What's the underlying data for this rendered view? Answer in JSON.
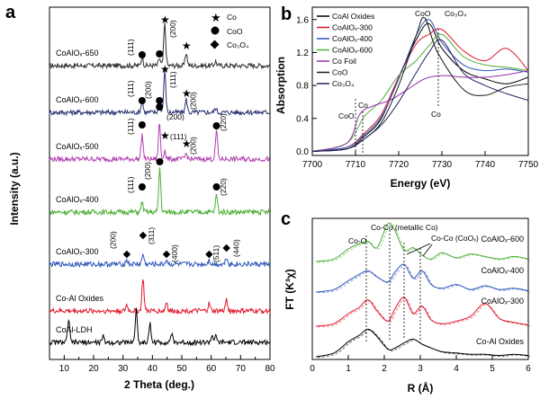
{
  "panels": {
    "a": {
      "letter": "a",
      "xlabel": "2 Theta (deg.)",
      "ylabel": "Intensity (a.u.)",
      "xlim": [
        5,
        80
      ],
      "xticks": [
        10,
        20,
        30,
        40,
        50,
        60,
        70,
        80
      ],
      "legend": [
        {
          "marker": "star",
          "label": "Co"
        },
        {
          "marker": "circle",
          "label": "CoO"
        },
        {
          "marker": "diamond",
          "label": "Co₃O₄"
        }
      ],
      "samples": [
        {
          "label": "CoAlOₓ-650",
          "color": "#2c2c2c"
        },
        {
          "label": "CoAlOₓ-600",
          "color": "#2a3172"
        },
        {
          "label": "CoAlOₓ-500",
          "color": "#b040b0"
        },
        {
          "label": "CoAlOₓ-400",
          "color": "#4caf34"
        },
        {
          "label": "CoAlOₓ-300",
          "color": "#2b55b8"
        },
        {
          "label": "Co-Al Oxides",
          "color": "#e0162b"
        },
        {
          "label": "CoAl-LDH",
          "color": "#000000"
        }
      ],
      "annotations": [
        "(111)",
        "(200)",
        "(111)",
        "(200)",
        "(111)",
        "(200)",
        "(111)",
        "(200)",
        "(220)",
        "(111)",
        "(200)",
        "(220)",
        "(200)",
        "(311)",
        "(400)",
        "(511)",
        "(440)"
      ]
    },
    "b": {
      "letter": "b",
      "xlabel": "Energy (eV)",
      "ylabel": "Absorption",
      "xlim": [
        7700,
        7750
      ],
      "ylim": [
        -0.05,
        1.75
      ],
      "xticks": [
        7700,
        7710,
        7720,
        7730,
        7740,
        7750
      ],
      "yticks": [
        0.0,
        0.4,
        0.8,
        1.2,
        1.6
      ],
      "legend": [
        {
          "label": "CoAl Oxides",
          "color": "#000000"
        },
        {
          "label": "CoAlOₓ-300",
          "color": "#e0162b"
        },
        {
          "label": "CoAlOₓ-400",
          "color": "#2b55b8"
        },
        {
          "label": "CoAlOₓ-600",
          "color": "#4caf34"
        },
        {
          "label": "Co Foil",
          "color": "#9a2fb0"
        },
        {
          "label": "CoO",
          "color": "#1a1a1a"
        },
        {
          "label": "Co₃O₄",
          "color": "#23235e"
        }
      ],
      "annotations": {
        "coo_top": "CoO",
        "co3o4_top": "Co₃O₄",
        "co_mid": "Co",
        "coo_left": "CoO",
        "co_left": "Co"
      }
    },
    "c": {
      "letter": "c",
      "xlabel": "R (Å)",
      "ylabel": "FT (K³χ)",
      "xlim": [
        0,
        6
      ],
      "xticks": [
        0,
        1,
        2,
        3,
        4,
        5,
        6
      ],
      "samples": [
        {
          "label": "CoAlOₓ-600",
          "color": "#4caf34"
        },
        {
          "label": "CoAlOₓ-400",
          "color": "#2b55b8"
        },
        {
          "label": "CoAlOₓ-300",
          "color": "#e0162b"
        },
        {
          "label": "Co-Al Oxides",
          "color": "#000000"
        }
      ],
      "annotations": {
        "coo": "Co-O",
        "coco_metal": "Co-Co (metallic Co)",
        "coco_cox": "Co-Co (CoOₓ)"
      }
    }
  },
  "chart_data": [
    {
      "type": "line",
      "title": "",
      "xlabel": "2 Theta (deg.)",
      "ylabel": "Intensity (a.u.)",
      "xlim": [
        5,
        80
      ],
      "series": [
        {
          "name": "CoAlOₓ-650",
          "peaks": [
            [
              36.5,
              0.6
            ],
            [
              42.4,
              0.5
            ],
            [
              44.2,
              2.9
            ],
            [
              51.5,
              0.9
            ],
            [
              61.5,
              0.3
            ]
          ]
        },
        {
          "name": "CoAlOₓ-600",
          "peaks": [
            [
              36.5,
              0.8
            ],
            [
              42.4,
              0.8
            ],
            [
              44.2,
              2.9
            ],
            [
              51.5,
              0.9
            ],
            [
              61.5,
              0.3
            ]
          ]
        },
        {
          "name": "CoAlOₓ-500",
          "peaks": [
            [
              36.5,
              1.7
            ],
            [
              42.4,
              2.5
            ],
            [
              44.2,
              0.6
            ],
            [
              51.5,
              0.4
            ],
            [
              61.8,
              2.0
            ]
          ]
        },
        {
          "name": "CoAlOₓ-400",
          "peaks": [
            [
              36.5,
              0.7
            ],
            [
              42.5,
              3.1
            ],
            [
              61.8,
              1.2
            ]
          ]
        },
        {
          "name": "CoAlOₓ-300",
          "peaks": [
            [
              31.3,
              0.3
            ],
            [
              36.8,
              0.7
            ],
            [
              44.8,
              0.3
            ],
            [
              59.3,
              0.3
            ],
            [
              65.2,
              0.5
            ]
          ]
        },
        {
          "name": "Co-Al Oxides",
          "peaks": [
            [
              31.3,
              0.4
            ],
            [
              36.8,
              2.3
            ],
            [
              44.8,
              0.6
            ],
            [
              59.3,
              0.5
            ],
            [
              65.2,
              0.8
            ]
          ]
        },
        {
          "name": "CoAl-LDH",
          "peaks": [
            [
              11.5,
              1.6
            ],
            [
              23.3,
              0.4
            ],
            [
              34.5,
              2.3
            ],
            [
              39.2,
              1.3
            ],
            [
              46.5,
              0.6
            ],
            [
              60.3,
              0.5
            ],
            [
              61.5,
              0.4
            ]
          ]
        }
      ]
    },
    {
      "type": "line",
      "title": "",
      "xlabel": "Energy (eV)",
      "ylabel": "Absorption",
      "xlim": [
        7700,
        7750
      ],
      "ylim": [
        -0.05,
        1.75
      ],
      "series": [
        {
          "name": "CoAl Oxides",
          "x": [
            7700,
            7708,
            7712,
            7716,
            7720,
            7724,
            7727,
            7730,
            7735,
            7740,
            7745,
            7750
          ],
          "y": [
            0.0,
            0.03,
            0.18,
            0.4,
            0.9,
            1.35,
            1.55,
            1.25,
            0.98,
            0.88,
            0.82,
            0.9
          ]
        },
        {
          "name": "CoAlOₓ-300",
          "x": [
            7700,
            7708,
            7712,
            7716,
            7720,
            7724,
            7727,
            7730,
            7735,
            7740,
            7745,
            7750
          ],
          "y": [
            0.0,
            0.05,
            0.22,
            0.45,
            0.9,
            1.3,
            1.42,
            1.48,
            1.22,
            1.1,
            1.25,
            0.98
          ]
        },
        {
          "name": "CoAlOₓ-400",
          "x": [
            7700,
            7708,
            7712,
            7716,
            7720,
            7724,
            7727,
            7730,
            7735,
            7740,
            7745,
            7750
          ],
          "y": [
            0.0,
            0.05,
            0.2,
            0.42,
            0.88,
            1.4,
            1.6,
            1.32,
            1.05,
            0.98,
            1.0,
            0.96
          ]
        },
        {
          "name": "CoAlOₓ-600",
          "x": [
            7700,
            7708,
            7712,
            7716,
            7720,
            7724,
            7727,
            7730,
            7735,
            7740,
            7745,
            7750
          ],
          "y": [
            0.0,
            0.1,
            0.42,
            0.62,
            0.92,
            1.1,
            1.28,
            1.42,
            1.15,
            1.05,
            1.02,
            0.98
          ]
        },
        {
          "name": "Co Foil",
          "x": [
            7700,
            7708,
            7711,
            7714,
            7718,
            7722,
            7726,
            7730,
            7735,
            7740,
            7745,
            7750
          ],
          "y": [
            0.0,
            0.1,
            0.45,
            0.55,
            0.62,
            0.75,
            0.88,
            0.92,
            0.9,
            0.9,
            0.93,
            0.98
          ]
        },
        {
          "name": "CoO",
          "x": [
            7700,
            7708,
            7712,
            7716,
            7720,
            7724,
            7726,
            7729,
            7735,
            7740,
            7745,
            7750
          ],
          "y": [
            0.0,
            0.03,
            0.15,
            0.35,
            0.8,
            1.4,
            1.62,
            1.2,
            0.75,
            0.68,
            0.78,
            0.82
          ]
        },
        {
          "name": "Co₃O₄",
          "x": [
            7700,
            7708,
            7712,
            7716,
            7720,
            7724,
            7727,
            7730,
            7735,
            7740,
            7745,
            7750
          ],
          "y": [
            0.0,
            0.03,
            0.15,
            0.32,
            0.6,
            0.95,
            1.2,
            1.35,
            0.95,
            0.8,
            0.7,
            0.62
          ]
        }
      ]
    },
    {
      "type": "line",
      "title": "",
      "xlabel": "R (Å)",
      "ylabel": "FT (K³χ)",
      "xlim": [
        0,
        6
      ],
      "series": [
        {
          "name": "CoAlOₓ-600",
          "x": [
            0.1,
            0.6,
            1.0,
            1.3,
            1.55,
            1.8,
            2.1,
            2.3,
            2.55,
            2.8,
            3.05,
            3.3,
            3.6,
            4.0,
            4.4,
            4.8,
            5.2,
            5.6,
            6.0
          ],
          "y": [
            0.0,
            0.1,
            0.5,
            0.7,
            0.8,
            0.55,
            1.5,
            1.2,
            0.45,
            0.55,
            0.25,
            0.1,
            0.35,
            0.15,
            0.3,
            0.2,
            0.1,
            0.2,
            0.1
          ]
        },
        {
          "name": "CoAlOₓ-400",
          "x": [
            0.1,
            0.6,
            1.0,
            1.3,
            1.55,
            1.8,
            2.1,
            2.3,
            2.55,
            2.8,
            3.05,
            3.3,
            3.6,
            4.0,
            4.4,
            4.8,
            5.2,
            5.6,
            6.0
          ],
          "y": [
            0.0,
            0.1,
            0.45,
            0.7,
            0.85,
            0.6,
            0.4,
            0.8,
            1.1,
            0.55,
            0.85,
            0.3,
            0.15,
            0.3,
            0.1,
            0.25,
            0.1,
            0.15,
            0.05
          ]
        },
        {
          "name": "CoAlOₓ-300",
          "x": [
            0.1,
            0.6,
            1.0,
            1.3,
            1.55,
            1.8,
            2.1,
            2.3,
            2.55,
            2.8,
            3.05,
            3.3,
            3.6,
            4.0,
            4.4,
            4.8,
            5.2,
            5.6,
            6.0
          ],
          "y": [
            0.0,
            0.1,
            0.5,
            0.75,
            1.05,
            0.6,
            0.2,
            0.7,
            1.15,
            0.5,
            0.8,
            0.25,
            0.1,
            0.2,
            0.4,
            0.9,
            0.3,
            0.15,
            0.05
          ]
        },
        {
          "name": "Co-Al Oxides",
          "x": [
            0.1,
            0.6,
            1.0,
            1.3,
            1.55,
            1.8,
            2.1,
            2.3,
            2.55,
            2.8,
            3.05,
            3.3,
            3.6,
            4.0,
            4.4,
            4.8,
            5.2,
            5.6,
            6.0
          ],
          "y": [
            0.0,
            0.15,
            0.6,
            0.85,
            1.1,
            0.8,
            0.3,
            0.35,
            0.55,
            0.7,
            0.5,
            0.35,
            0.2,
            0.15,
            0.1,
            0.1,
            0.05,
            0.1,
            0.05
          ]
        }
      ]
    }
  ]
}
